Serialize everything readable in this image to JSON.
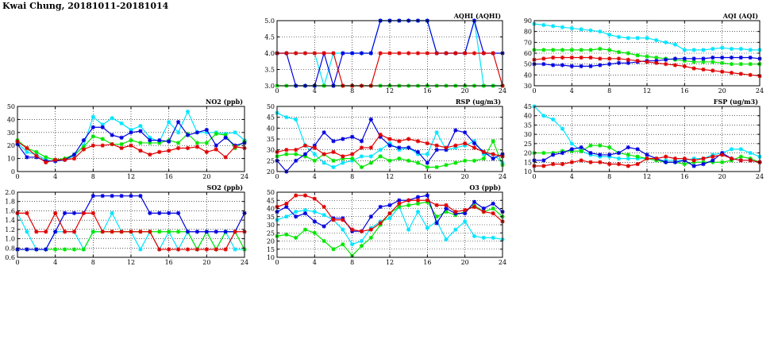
{
  "page": {
    "title": "Kwai Chung, 20181011-20181014"
  },
  "colors": {
    "day1": "#00e5ff",
    "day2": "#00e600",
    "day3": "#0000e0",
    "day4": "#e00000"
  },
  "chart_data": [
    {
      "id": "aqhi",
      "type": "line",
      "title": "AQHI (AQHI)",
      "xlim": [
        0,
        24
      ],
      "ylim": [
        3.0,
        5.0
      ],
      "xticks": [
        0,
        4,
        8,
        12,
        16,
        20,
        24
      ],
      "yticks": [
        3.0,
        3.5,
        4.0,
        4.5,
        5.0
      ],
      "ytick_labels": [
        "3.0",
        "3.5",
        "4.0",
        "4.5",
        "5.0"
      ],
      "grid": true,
      "series": [
        {
          "color": "#00e5ff",
          "values": [
            4,
            4,
            4,
            4,
            4,
            3,
            4,
            4,
            4,
            4,
            4,
            5,
            5,
            5,
            5,
            5,
            5,
            4,
            4,
            4,
            4,
            5,
            3,
            3,
            3
          ]
        },
        {
          "color": "#00e600",
          "values": [
            3,
            3,
            3,
            3,
            3,
            3,
            3,
            3,
            3,
            3,
            3,
            3,
            3,
            3,
            3,
            3,
            3,
            3,
            3,
            3,
            3,
            3,
            3,
            3,
            3
          ]
        },
        {
          "color": "#0000e0",
          "values": [
            4,
            4,
            3,
            3,
            3,
            4,
            3,
            4,
            4,
            4,
            4,
            5,
            5,
            5,
            5,
            5,
            5,
            4,
            4,
            4,
            4,
            5,
            4,
            4,
            4
          ]
        },
        {
          "color": "#e00000",
          "values": [
            4,
            4,
            4,
            4,
            4,
            4,
            4,
            3,
            3,
            3,
            3,
            4,
            4,
            4,
            4,
            4,
            4,
            4,
            4,
            4,
            4,
            4,
            4,
            4,
            3
          ]
        }
      ]
    },
    {
      "id": "aqi",
      "type": "line",
      "title": "AQI (AQI)",
      "xlim": [
        0,
        24
      ],
      "ylim": [
        30,
        90
      ],
      "xticks": [
        0,
        4,
        8,
        12,
        16,
        20,
        24
      ],
      "yticks": [
        30,
        40,
        50,
        60,
        70,
        80,
        90
      ],
      "ytick_labels": [
        "30",
        "40",
        "50",
        "60",
        "70",
        "80",
        "90"
      ],
      "grid": true,
      "series": [
        {
          "color": "#00e5ff",
          "values": [
            87,
            86,
            85,
            84,
            83,
            82,
            81,
            80,
            77,
            75,
            74,
            74,
            74,
            72,
            70,
            68,
            63,
            63,
            63,
            64,
            65,
            64,
            64,
            63,
            63
          ]
        },
        {
          "color": "#00e600",
          "values": [
            63,
            63,
            63,
            63,
            63,
            63,
            63,
            64,
            63,
            61,
            60,
            58,
            57,
            56,
            55,
            54,
            53,
            52,
            52,
            52,
            51,
            50,
            50,
            50,
            50
          ]
        },
        {
          "color": "#0000e0",
          "values": [
            50,
            50,
            49,
            49,
            48,
            48,
            48,
            49,
            50,
            51,
            51,
            52,
            53,
            53,
            54,
            55,
            55,
            55,
            55,
            56,
            56,
            56,
            56,
            56,
            55
          ]
        },
        {
          "color": "#e00000",
          "values": [
            54,
            55,
            56,
            56,
            56,
            56,
            56,
            55,
            55,
            55,
            54,
            53,
            52,
            51,
            50,
            49,
            48,
            46,
            45,
            44,
            43,
            42,
            41,
            40,
            39
          ]
        }
      ]
    },
    {
      "id": "no2",
      "type": "line",
      "title": "NO2 (ppb)",
      "xlim": [
        0,
        24
      ],
      "ylim": [
        0,
        50
      ],
      "xticks": [
        0,
        4,
        8,
        12,
        16,
        20,
        24
      ],
      "yticks": [
        0,
        10,
        20,
        30,
        40,
        50
      ],
      "ytick_labels": [
        "0",
        "10",
        "20",
        "30",
        "40",
        "50"
      ],
      "grid": true,
      "series": [
        {
          "color": "#00e5ff",
          "values": [
            22,
            15,
            13,
            9,
            8,
            9,
            12,
            20,
            42,
            36,
            41,
            37,
            32,
            35,
            26,
            23,
            38,
            30,
            46,
            30,
            30,
            30,
            29,
            30,
            24
          ]
        },
        {
          "color": "#00e600",
          "values": [
            24,
            18,
            15,
            11,
            9,
            10,
            13,
            19,
            27,
            25,
            21,
            21,
            24,
            22,
            22,
            22,
            24,
            22,
            29,
            22,
            22,
            29,
            28,
            18,
            23
          ]
        },
        {
          "color": "#0000e0",
          "values": [
            21,
            11,
            11,
            8,
            8,
            9,
            13,
            24,
            34,
            34,
            28,
            26,
            30,
            31,
            24,
            24,
            23,
            38,
            28,
            30,
            32,
            20,
            26,
            20,
            22
          ]
        },
        {
          "color": "#e00000",
          "values": [
            23,
            18,
            12,
            7,
            9,
            9,
            10,
            17,
            20,
            20,
            21,
            18,
            20,
            16,
            13,
            15,
            16,
            18,
            18,
            19,
            15,
            17,
            11,
            19,
            18
          ]
        }
      ]
    },
    {
      "id": "rsp",
      "type": "line",
      "title": "RSP (ug/m3)",
      "xlim": [
        0,
        24
      ],
      "ylim": [
        20,
        50
      ],
      "xticks": [
        0,
        4,
        8,
        12,
        16,
        20,
        24
      ],
      "yticks": [
        20,
        25,
        30,
        35,
        40,
        45,
        50
      ],
      "ytick_labels": [
        "20",
        "25",
        "30",
        "35",
        "40",
        "45",
        "50"
      ],
      "grid": true,
      "series": [
        {
          "color": "#00e5ff",
          "values": [
            47,
            45,
            44,
            32,
            28,
            24,
            22,
            24,
            25,
            27,
            27,
            30,
            33,
            30,
            31,
            28,
            28,
            38,
            30,
            31,
            32,
            34,
            28,
            28,
            24
          ]
        },
        {
          "color": "#00e600",
          "values": [
            27,
            28,
            28,
            27,
            25,
            28,
            25,
            26,
            26,
            22,
            24,
            27,
            25,
            26,
            25,
            24,
            22,
            22,
            23,
            24,
            25,
            25,
            26,
            34,
            23
          ]
        },
        {
          "color": "#0000e0",
          "values": [
            25,
            20,
            25,
            28,
            32,
            38,
            34,
            35,
            36,
            34,
            44,
            36,
            32,
            31,
            31,
            29,
            24,
            30,
            30,
            39,
            38,
            33,
            29,
            26,
            28
          ]
        },
        {
          "color": "#e00000",
          "values": [
            29,
            30,
            30,
            32,
            31,
            28,
            29,
            27,
            28,
            31,
            31,
            37,
            35,
            34,
            35,
            34,
            33,
            32,
            31,
            32,
            33,
            31,
            29,
            28,
            27
          ]
        }
      ]
    },
    {
      "id": "fsp",
      "type": "line",
      "title": "FSP (ug/m3)",
      "xlim": [
        0,
        24
      ],
      "ylim": [
        10,
        45
      ],
      "xticks": [
        0,
        4,
        8,
        12,
        16,
        20,
        24
      ],
      "yticks": [
        10,
        15,
        20,
        25,
        30,
        35,
        40,
        45
      ],
      "ytick_labels": [
        "10",
        "15",
        "20",
        "25",
        "30",
        "35",
        "40",
        "45"
      ],
      "grid": true,
      "series": [
        {
          "color": "#00e5ff",
          "values": [
            45,
            40,
            38,
            33,
            25,
            21,
            19,
            18,
            18,
            17,
            17,
            17,
            17,
            16,
            16,
            16,
            16,
            17,
            17,
            19,
            20,
            22,
            22,
            20,
            18
          ]
        },
        {
          "color": "#00e600",
          "values": [
            20,
            20,
            20,
            21,
            21,
            21,
            24,
            24,
            23,
            20,
            19,
            18,
            17,
            16,
            15,
            15,
            14,
            15,
            15,
            15,
            15,
            16,
            18,
            17,
            15
          ]
        },
        {
          "color": "#0000e0",
          "values": [
            16,
            16,
            19,
            20,
            22,
            23,
            20,
            19,
            19,
            20,
            23,
            22,
            19,
            17,
            15,
            15,
            16,
            13,
            14,
            16,
            20,
            17,
            16,
            16,
            15
          ]
        },
        {
          "color": "#e00000",
          "values": [
            13,
            13,
            14,
            14,
            15,
            16,
            15,
            15,
            14,
            14,
            13,
            14,
            17,
            17,
            18,
            17,
            17,
            16,
            17,
            18,
            19,
            17,
            16,
            16,
            15
          ]
        }
      ]
    },
    {
      "id": "so2",
      "type": "line",
      "title": "SO2 (ppb)",
      "xlim": [
        0,
        24
      ],
      "ylim": [
        0.6,
        2.0
      ],
      "xticks": [
        0,
        4,
        8,
        12,
        16,
        20,
        24
      ],
      "yticks": [
        0.6,
        0.8,
        1.0,
        1.2,
        1.4,
        1.6,
        1.8,
        2.0
      ],
      "ytick_labels": [
        "0.6",
        "0.8",
        "1.0",
        "1.2",
        "1.4",
        "1.6",
        "1.8",
        "2.0"
      ],
      "grid": true,
      "series": [
        {
          "color": "#00e5ff",
          "values": [
            1.55,
            1.15,
            0.77,
            0.77,
            1.15,
            1.15,
            1.15,
            0.77,
            1.15,
            1.15,
            1.55,
            1.15,
            1.15,
            0.77,
            1.15,
            0.77,
            1.15,
            0.77,
            1.15,
            0.77,
            1.15,
            0.77,
            1.15,
            0.77,
            0.77
          ]
        },
        {
          "color": "#00e600",
          "values": [
            0.77,
            0.77,
            0.77,
            0.77,
            0.77,
            0.77,
            0.77,
            0.77,
            1.15,
            1.15,
            1.15,
            1.15,
            1.15,
            1.15,
            1.15,
            1.15,
            1.15,
            1.15,
            1.15,
            0.77,
            1.15,
            0.77,
            1.15,
            1.15,
            0.77
          ]
        },
        {
          "color": "#0000e0",
          "values": [
            0.77,
            0.77,
            0.77,
            0.77,
            1.15,
            1.55,
            1.55,
            1.55,
            1.92,
            1.92,
            1.92,
            1.92,
            1.92,
            1.92,
            1.55,
            1.55,
            1.55,
            1.55,
            1.15,
            1.15,
            1.15,
            1.15,
            1.15,
            1.15,
            1.55
          ]
        },
        {
          "color": "#e00000",
          "values": [
            1.55,
            1.55,
            1.15,
            1.15,
            1.55,
            1.15,
            1.15,
            1.55,
            1.55,
            1.15,
            1.15,
            1.15,
            1.15,
            1.15,
            1.15,
            0.77,
            0.77,
            0.77,
            0.77,
            0.77,
            0.77,
            0.77,
            0.77,
            1.15,
            1.15
          ]
        }
      ]
    },
    {
      "id": "o3",
      "type": "line",
      "title": "O3 (ppb)",
      "xlim": [
        0,
        24
      ],
      "ylim": [
        10,
        50
      ],
      "xticks": [
        0,
        4,
        8,
        12,
        16,
        20,
        24
      ],
      "yticks": [
        10,
        15,
        20,
        25,
        30,
        35,
        40,
        45,
        50
      ],
      "ytick_labels": [
        "10",
        "15",
        "20",
        "25",
        "30",
        "35",
        "40",
        "45",
        "50"
      ],
      "grid": true,
      "series": [
        {
          "color": "#00e5ff",
          "values": [
            33,
            35,
            38,
            39,
            38,
            36,
            33,
            27,
            18,
            20,
            28,
            32,
            34,
            41,
            27,
            38,
            28,
            32,
            21,
            27,
            32,
            23,
            22,
            22,
            21
          ]
        },
        {
          "color": "#00e600",
          "values": [
            23,
            24,
            22,
            27,
            25,
            20,
            15,
            18,
            11,
            17,
            22,
            30,
            37,
            41,
            42,
            43,
            44,
            35,
            38,
            36,
            38,
            42,
            38,
            40,
            35
          ]
        },
        {
          "color": "#0000e0",
          "values": [
            38,
            41,
            35,
            37,
            32,
            29,
            34,
            34,
            26,
            26,
            35,
            41,
            42,
            45,
            45,
            47,
            48,
            31,
            40,
            37,
            37,
            44,
            40,
            43,
            38
          ]
        },
        {
          "color": "#e00000",
          "values": [
            41,
            43,
            48,
            48,
            46,
            41,
            33,
            33,
            27,
            26,
            27,
            31,
            37,
            43,
            45,
            45,
            45,
            42,
            42,
            38,
            39,
            41,
            38,
            37,
            32
          ]
        }
      ]
    }
  ]
}
